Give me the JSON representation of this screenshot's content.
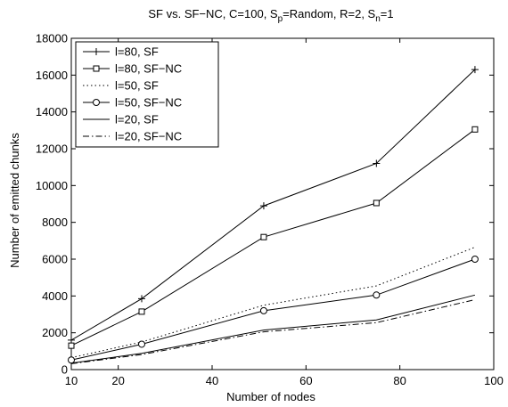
{
  "chart_data": {
    "type": "line",
    "title": "SF vs. SF−NC, C=100, S_p=Random, R=2, S_n=1",
    "title_parts": {
      "prefix": "SF vs. SF−NC, C=100, S",
      "sub1": "p",
      "mid": "=Random, R=2, S",
      "sub2": "n",
      "suffix": "=1"
    },
    "xlabel": "Number of nodes",
    "ylabel": "Number of emitted chunks",
    "xlim": [
      10,
      100
    ],
    "ylim": [
      0,
      18000
    ],
    "xticks": [
      10,
      20,
      40,
      60,
      80,
      100
    ],
    "yticks": [
      0,
      2000,
      4000,
      6000,
      8000,
      10000,
      12000,
      14000,
      16000,
      18000
    ],
    "grid": false,
    "legend_position": "top-left",
    "x": [
      10,
      25,
      51,
      75,
      96
    ],
    "series": [
      {
        "name": "l=80, SF",
        "style": "solid",
        "marker": "plus",
        "values": [
          1600,
          3850,
          8900,
          11200,
          16300
        ]
      },
      {
        "name": "l=80, SF−NC",
        "style": "solid",
        "marker": "square",
        "values": [
          1300,
          3150,
          7200,
          9050,
          13050
        ]
      },
      {
        "name": "l=50, SF",
        "style": "dotted",
        "marker": "none",
        "values": [
          650,
          1500,
          3500,
          4550,
          6650
        ]
      },
      {
        "name": "l=50, SF−NC",
        "style": "solid",
        "marker": "circle",
        "values": [
          520,
          1380,
          3200,
          4050,
          6000
        ]
      },
      {
        "name": "l=20, SF",
        "style": "solid",
        "marker": "none",
        "values": [
          350,
          880,
          2150,
          2700,
          4050
        ]
      },
      {
        "name": "l=20, SF−NC",
        "style": "dashdot",
        "marker": "none",
        "values": [
          320,
          820,
          2050,
          2550,
          3800
        ]
      }
    ],
    "colors": {
      "line": "#000000",
      "background": "#ffffff"
    }
  }
}
